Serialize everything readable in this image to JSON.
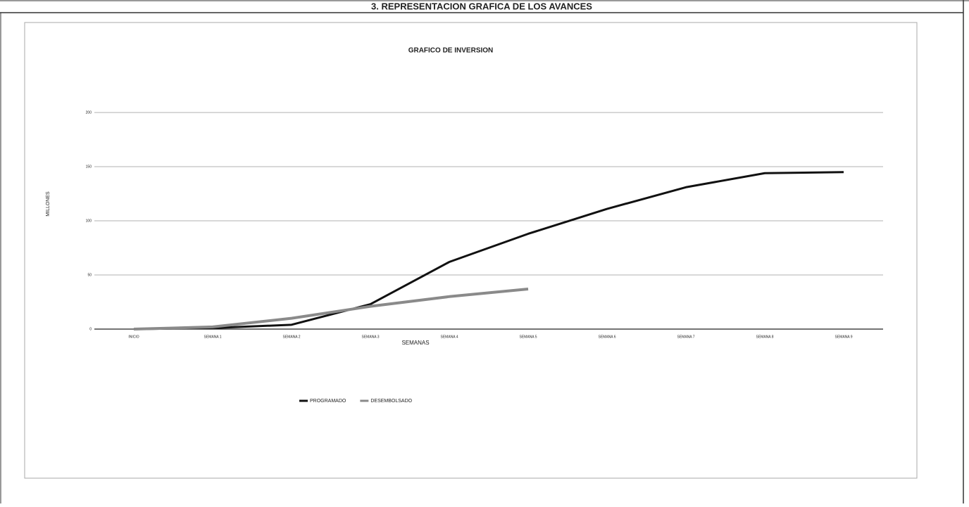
{
  "header": "3. REPRESENTACION GRAFICA DE LOS AVANCES",
  "chart_data": {
    "type": "line",
    "title": "GRAFICO DE INVERSION",
    "x_label": "SEMANAS",
    "y_label": "MILLONES",
    "categories": [
      "INICIO",
      "SEMANA 1",
      "SEMANA 2",
      "SEMANA 3",
      "SEMANA 4",
      "SEMANA 5",
      "SEMANA 6",
      "SEMANA 7",
      "SEMANA 8",
      "SEMANA 9"
    ],
    "series": [
      {
        "name": "PROGRAMADO",
        "color": "#111111",
        "values": [
          0,
          1,
          4,
          23,
          62,
          88,
          111,
          131,
          144,
          145
        ]
      },
      {
        "name": "DESEMBOLSADO",
        "color": "#8a8a8a",
        "values": [
          0,
          2,
          10,
          21,
          30,
          37,
          null,
          null,
          null,
          null
        ]
      }
    ],
    "ylim": [
      0,
      200
    ],
    "yticks": [
      0,
      50,
      100,
      150,
      200
    ],
    "grid": true,
    "legend": "bottom"
  }
}
